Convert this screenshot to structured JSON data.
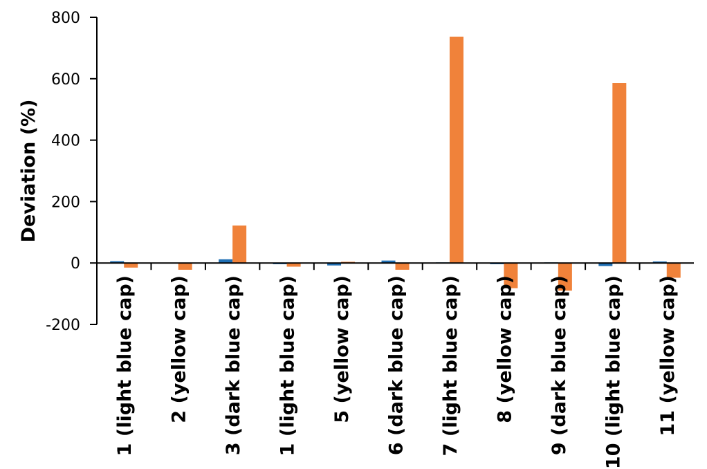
{
  "chart_data": {
    "type": "bar",
    "ylabel": "Deviation (%)",
    "ylim": [
      -200,
      800
    ],
    "yticks": [
      "800",
      "600",
      "400",
      "200",
      "0",
      "-200"
    ],
    "ytick_values": [
      800,
      600,
      400,
      200,
      0,
      -200
    ],
    "categories": [
      "1 (light blue cap)",
      "2 (yellow cap)",
      "3 (dark blue cap)",
      "1 (light blue cap)",
      "5 (yellow cap)",
      "6 (dark blue cap)",
      "7 (light blue cap)",
      "8 (yellow cap)",
      "9 (dark blue cap)",
      "10 (light blue cap)",
      "11 (yellow cap)"
    ],
    "series": [
      {
        "color": "#1f6fb4",
        "values": [
          6,
          0,
          12,
          -4,
          -8,
          8,
          2,
          -4,
          2,
          -10,
          5
        ]
      },
      {
        "color": "#f0823a",
        "values": [
          -15,
          -22,
          122,
          -12,
          4,
          -22,
          737,
          -82,
          -90,
          586,
          -48
        ]
      }
    ],
    "grid": false,
    "legend": "none"
  }
}
